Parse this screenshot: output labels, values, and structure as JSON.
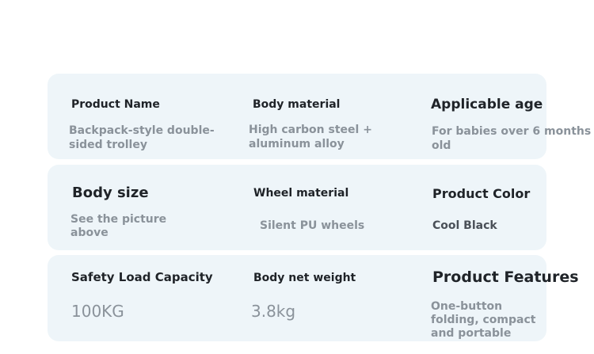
{
  "table": {
    "rows": [
      [
        {
          "label": "Product Name",
          "value": [
            "Backpack-style double-",
            "sided trolley"
          ]
        },
        {
          "label": "Body material",
          "value": [
            "High carbon steel +",
            "aluminum alloy"
          ]
        },
        {
          "label": "Applicable age",
          "value": [
            "For babies over 6 months",
            "old"
          ]
        }
      ],
      [
        {
          "label": "Body size",
          "value": [
            "See the picture",
            "above"
          ]
        },
        {
          "label": "Wheel material",
          "value": [
            "Silent PU wheels"
          ]
        },
        {
          "label": "Product Color",
          "value": [
            "Cool Black"
          ]
        }
      ],
      [
        {
          "label": "Safety Load Capacity",
          "value": [
            "100KG"
          ]
        },
        {
          "label": "Body net weight",
          "value": [
            "3.8kg"
          ]
        },
        {
          "label": "Product Features",
          "value": [
            "One-button",
            "folding, compact",
            "and portable"
          ]
        }
      ]
    ]
  }
}
